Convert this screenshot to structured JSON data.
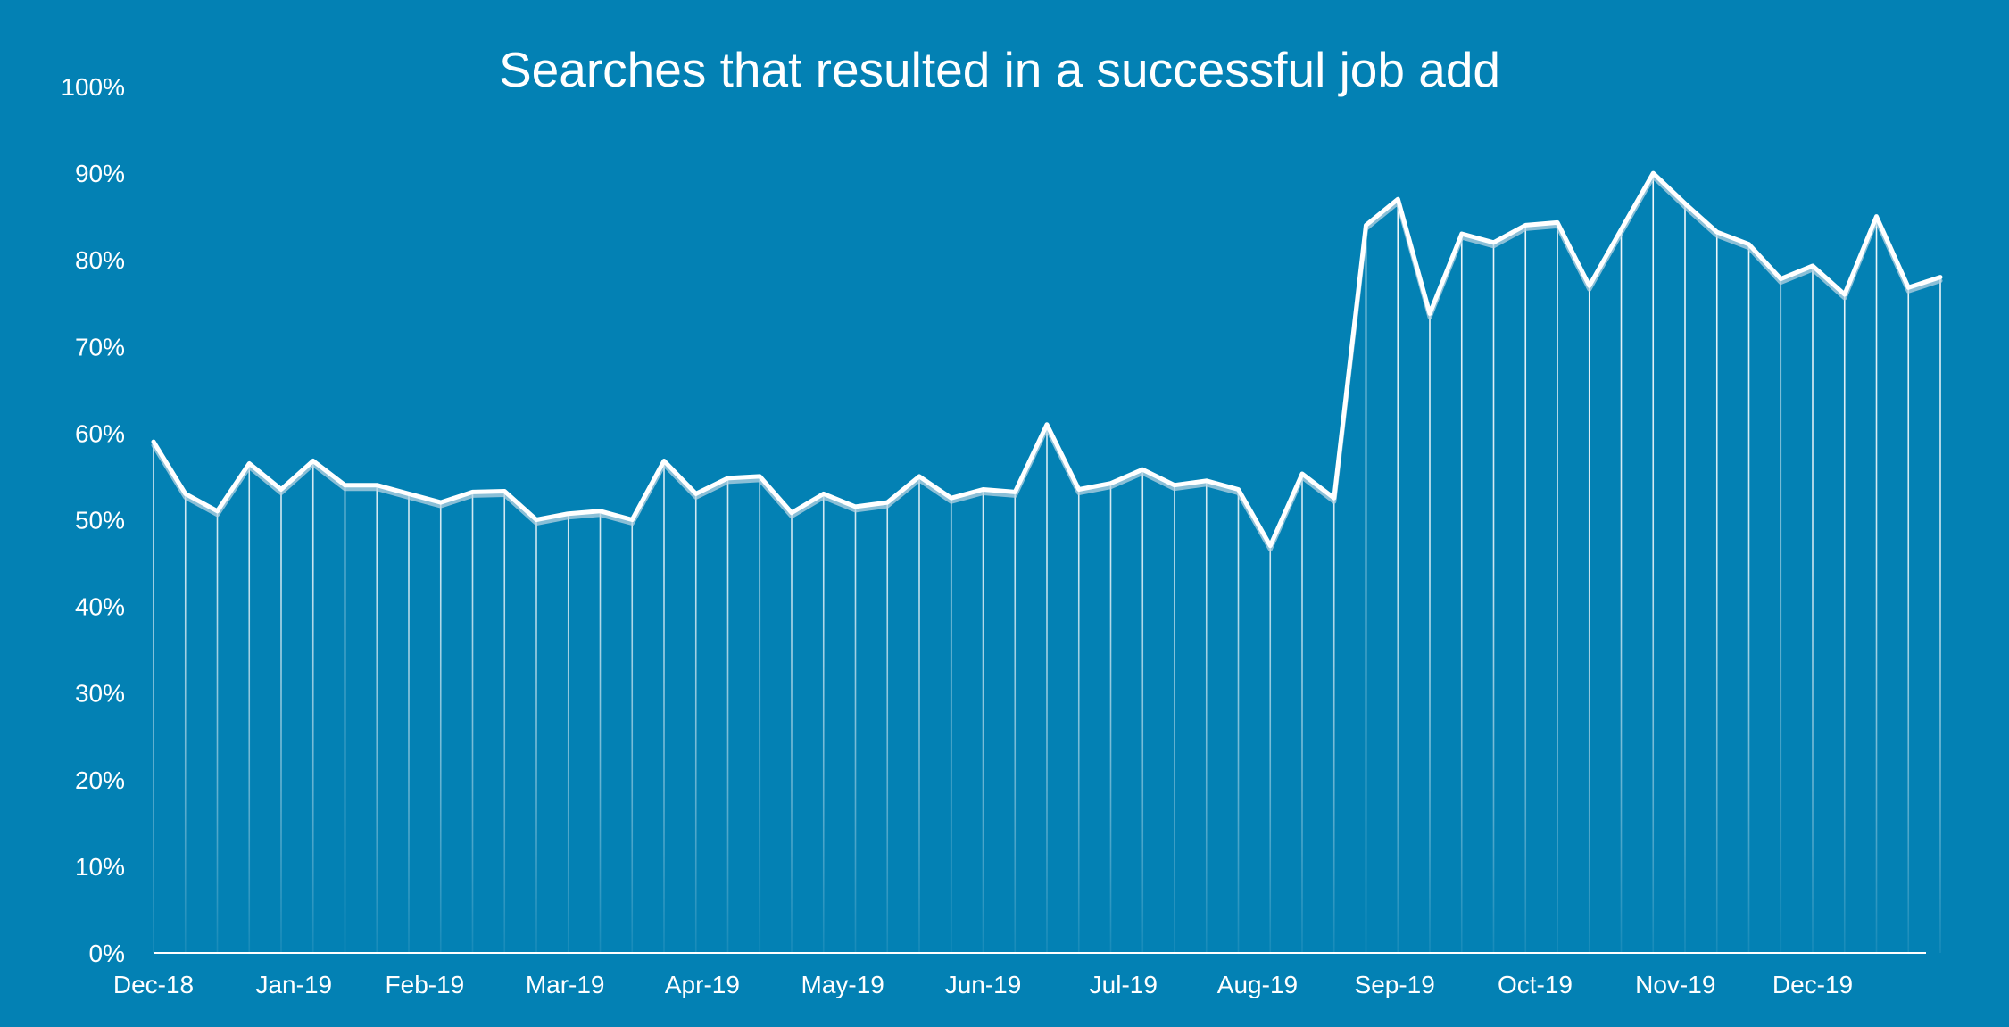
{
  "colors": {
    "background": "#0381b4",
    "line": "#ffffff",
    "line_shadow": "#b8d4e3",
    "drop_lines": "#ffffff",
    "axis": "#ffffff",
    "text": "#ffffff"
  },
  "chart_data": {
    "type": "line",
    "title": "Searches that resulted in a successful job add",
    "xlabel": "",
    "ylabel": "",
    "ylim": [
      0,
      100
    ],
    "y_ticks": [
      "0%",
      "10%",
      "20%",
      "30%",
      "40%",
      "50%",
      "60%",
      "70%",
      "80%",
      "90%",
      "100%"
    ],
    "x_tick_labels": [
      "Dec-18",
      "Jan-19",
      "Feb-19",
      "Mar-19",
      "Apr-19",
      "May-19",
      "Jun-19",
      "Jul-19",
      "Aug-19",
      "Sep-19",
      "Oct-19",
      "Nov-19",
      "Dec-19"
    ],
    "x_tick_points": [
      0,
      4.4,
      8.5,
      12.9,
      17.2,
      21.6,
      26,
      30.4,
      34.6,
      38.9,
      43.3,
      47.7,
      52
    ],
    "grid": false,
    "drop_lines": true,
    "series": [
      {
        "values": [
          59,
          53,
          51,
          56.5,
          53.5,
          56.8,
          54,
          54,
          53,
          52,
          53.2,
          53.3,
          50,
          50.7,
          51,
          50,
          56.8,
          53,
          54.8,
          55,
          50.8,
          53,
          51.5,
          52,
          55,
          52.5,
          53.5,
          53.2,
          61,
          53.5,
          54.2,
          55.8,
          54,
          54.5,
          53.5,
          47,
          55.3,
          52.5,
          84,
          87,
          73.8,
          83,
          82,
          84,
          84.3,
          77,
          83.5,
          90,
          86.5,
          83.2,
          81.8,
          77.8,
          79.3,
          76,
          85,
          76.8,
          78
        ]
      }
    ]
  }
}
